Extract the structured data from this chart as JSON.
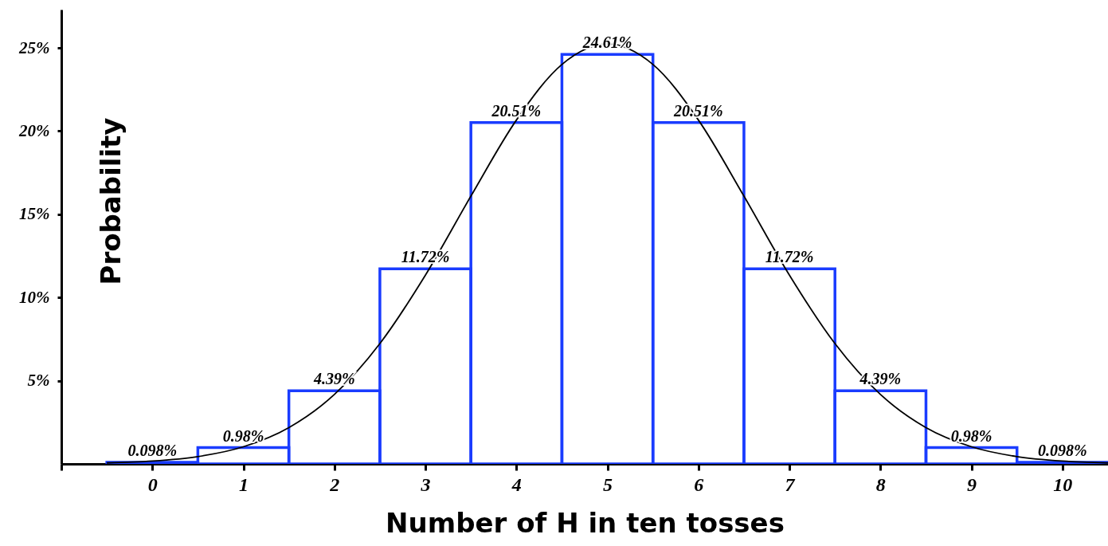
{
  "chart_data": {
    "type": "histogram",
    "xlabel": "Number of H in ten tosses",
    "ylabel": "Probability",
    "bins": [
      -0.5,
      0.5,
      1.5,
      2.5,
      3.5,
      4.5,
      5.5,
      6.5,
      7.5,
      8.5,
      9.5,
      10.5
    ],
    "series": [
      {
        "type": "histogram",
        "color": "#1a3cff",
        "values": [
          0.098,
          0.98,
          4.39,
          11.72,
          20.51,
          24.61,
          20.51,
          11.72,
          4.39,
          0.98,
          0.098
        ],
        "value_labels": [
          "0.098%",
          "0.98%",
          "4.39%",
          "11.72%",
          "20.51%",
          "24.61%",
          "20.51%",
          "11.72%",
          "4.39%",
          "0.98%",
          "0.098%"
        ]
      },
      {
        "type": "line",
        "color": "#000000",
        "x": [
          -0.5,
          0,
          0.5,
          1,
          1.5,
          2,
          2.5,
          3,
          3.5,
          4,
          4.5,
          5,
          5.5,
          6,
          6.5,
          7,
          7.5,
          8,
          8.5,
          9,
          9.5,
          10,
          10.5
        ],
        "values": [
          0.06,
          0.17,
          0.44,
          1.03,
          2.18,
          4.17,
          7.23,
          11.34,
          16.09,
          20.66,
          24.0,
          25.23,
          24.0,
          20.66,
          16.09,
          11.34,
          7.23,
          4.17,
          2.18,
          1.03,
          0.44,
          0.17,
          0.06
        ]
      }
    ],
    "xlim": [
      -1,
      10.5
    ],
    "ylim": [
      0,
      27.3
    ],
    "xticks": [
      {
        "value": -1,
        "label": null
      },
      0,
      1,
      2,
      3,
      4,
      5,
      6,
      7,
      8,
      9,
      10
    ],
    "yticks": [
      {
        "value": 5,
        "label": "5%"
      },
      {
        "value": 10,
        "label": "10%"
      },
      {
        "value": 15,
        "label": "15%"
      },
      {
        "value": 20,
        "label": "20%"
      },
      {
        "value": 25,
        "label": "25%"
      }
    ]
  }
}
